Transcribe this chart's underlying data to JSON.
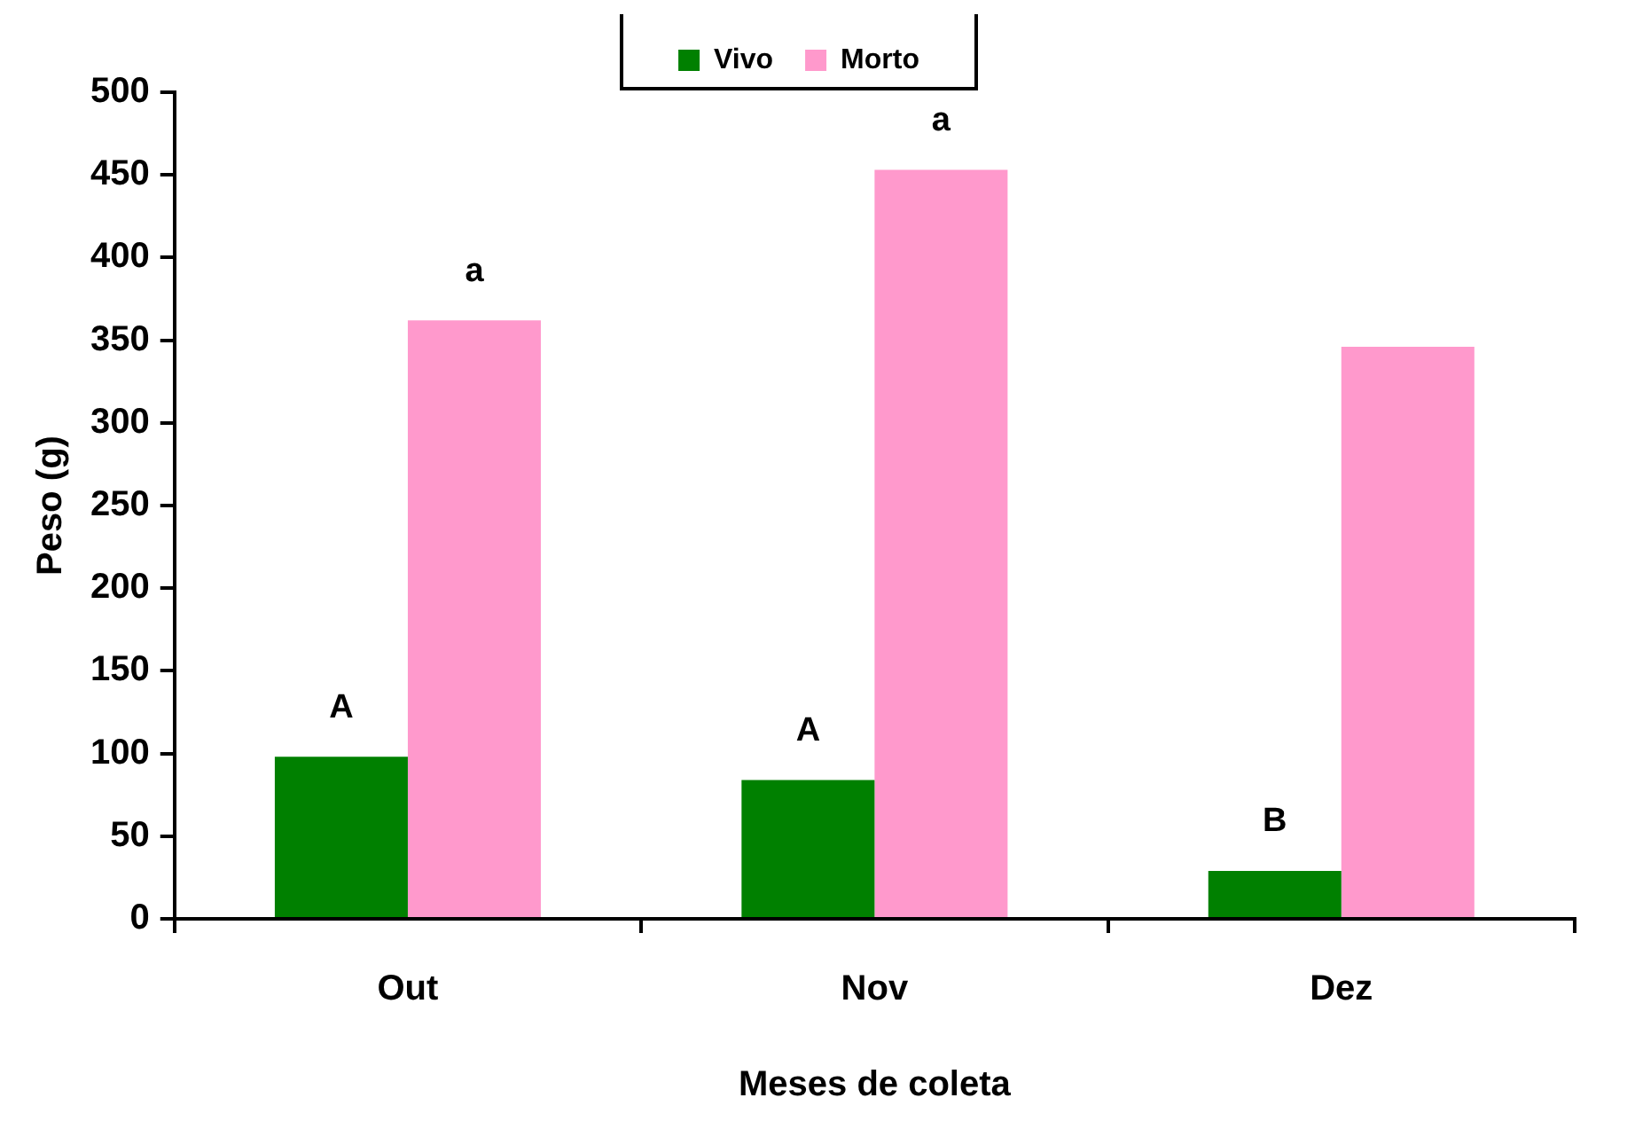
{
  "chart_data": {
    "type": "bar",
    "xlabel": "Meses de coleta",
    "ylabel": "Peso (g)",
    "categories": [
      "Out",
      "Nov",
      "Dez"
    ],
    "series": [
      {
        "name": "Vivo",
        "color": "#008000",
        "values": [
          98,
          84,
          29
        ]
      },
      {
        "name": "Morto",
        "color": "#ff99cc",
        "values": [
          362,
          453,
          346
        ]
      }
    ],
    "ylim": [
      0,
      500
    ],
    "yticks": [
      0,
      50,
      100,
      150,
      200,
      250,
      300,
      350,
      400,
      450,
      500
    ],
    "grid": false,
    "legend": "top",
    "annotations": [
      {
        "text": "A",
        "x": "Out",
        "y": 98
      },
      {
        "text": "a",
        "x": "Out",
        "y": 362
      },
      {
        "text": "A",
        "x": "Nov",
        "y": 84
      },
      {
        "text": "a",
        "x": "Nov",
        "y": 453
      },
      {
        "text": "B",
        "x": "Dez",
        "y": 29
      }
    ]
  }
}
